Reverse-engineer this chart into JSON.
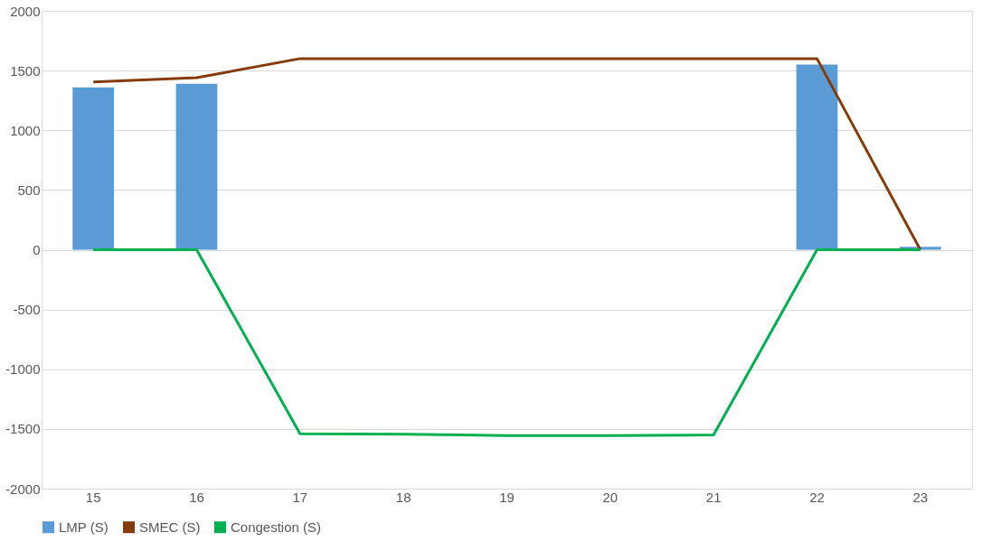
{
  "chart_data": {
    "type": "bar",
    "categories": [
      "15",
      "16",
      "17",
      "18",
      "19",
      "20",
      "21",
      "22",
      "23"
    ],
    "series": [
      {
        "name": "LMP (S)",
        "color": "#5b9bd5",
        "values": [
          1360,
          1390,
          null,
          null,
          null,
          null,
          null,
          1550,
          25
        ]
      },
      {
        "name": "SMEC (S)",
        "type": "line",
        "color": "#843c0c",
        "values": [
          1405,
          1440,
          1600,
          1600,
          1600,
          1600,
          1600,
          1600,
          0
        ]
      },
      {
        "name": "Congestion (S)",
        "type": "line",
        "color": "#00b050",
        "values": [
          0,
          0,
          -1540,
          -1545,
          -1555,
          -1555,
          -1550,
          0,
          0
        ]
      }
    ],
    "ylim": [
      -2000,
      2000
    ],
    "yticks": [
      -2000,
      -1500,
      -1000,
      -500,
      0,
      500,
      1000,
      1500,
      2000
    ],
    "grid": "y",
    "legend": "bottom"
  }
}
